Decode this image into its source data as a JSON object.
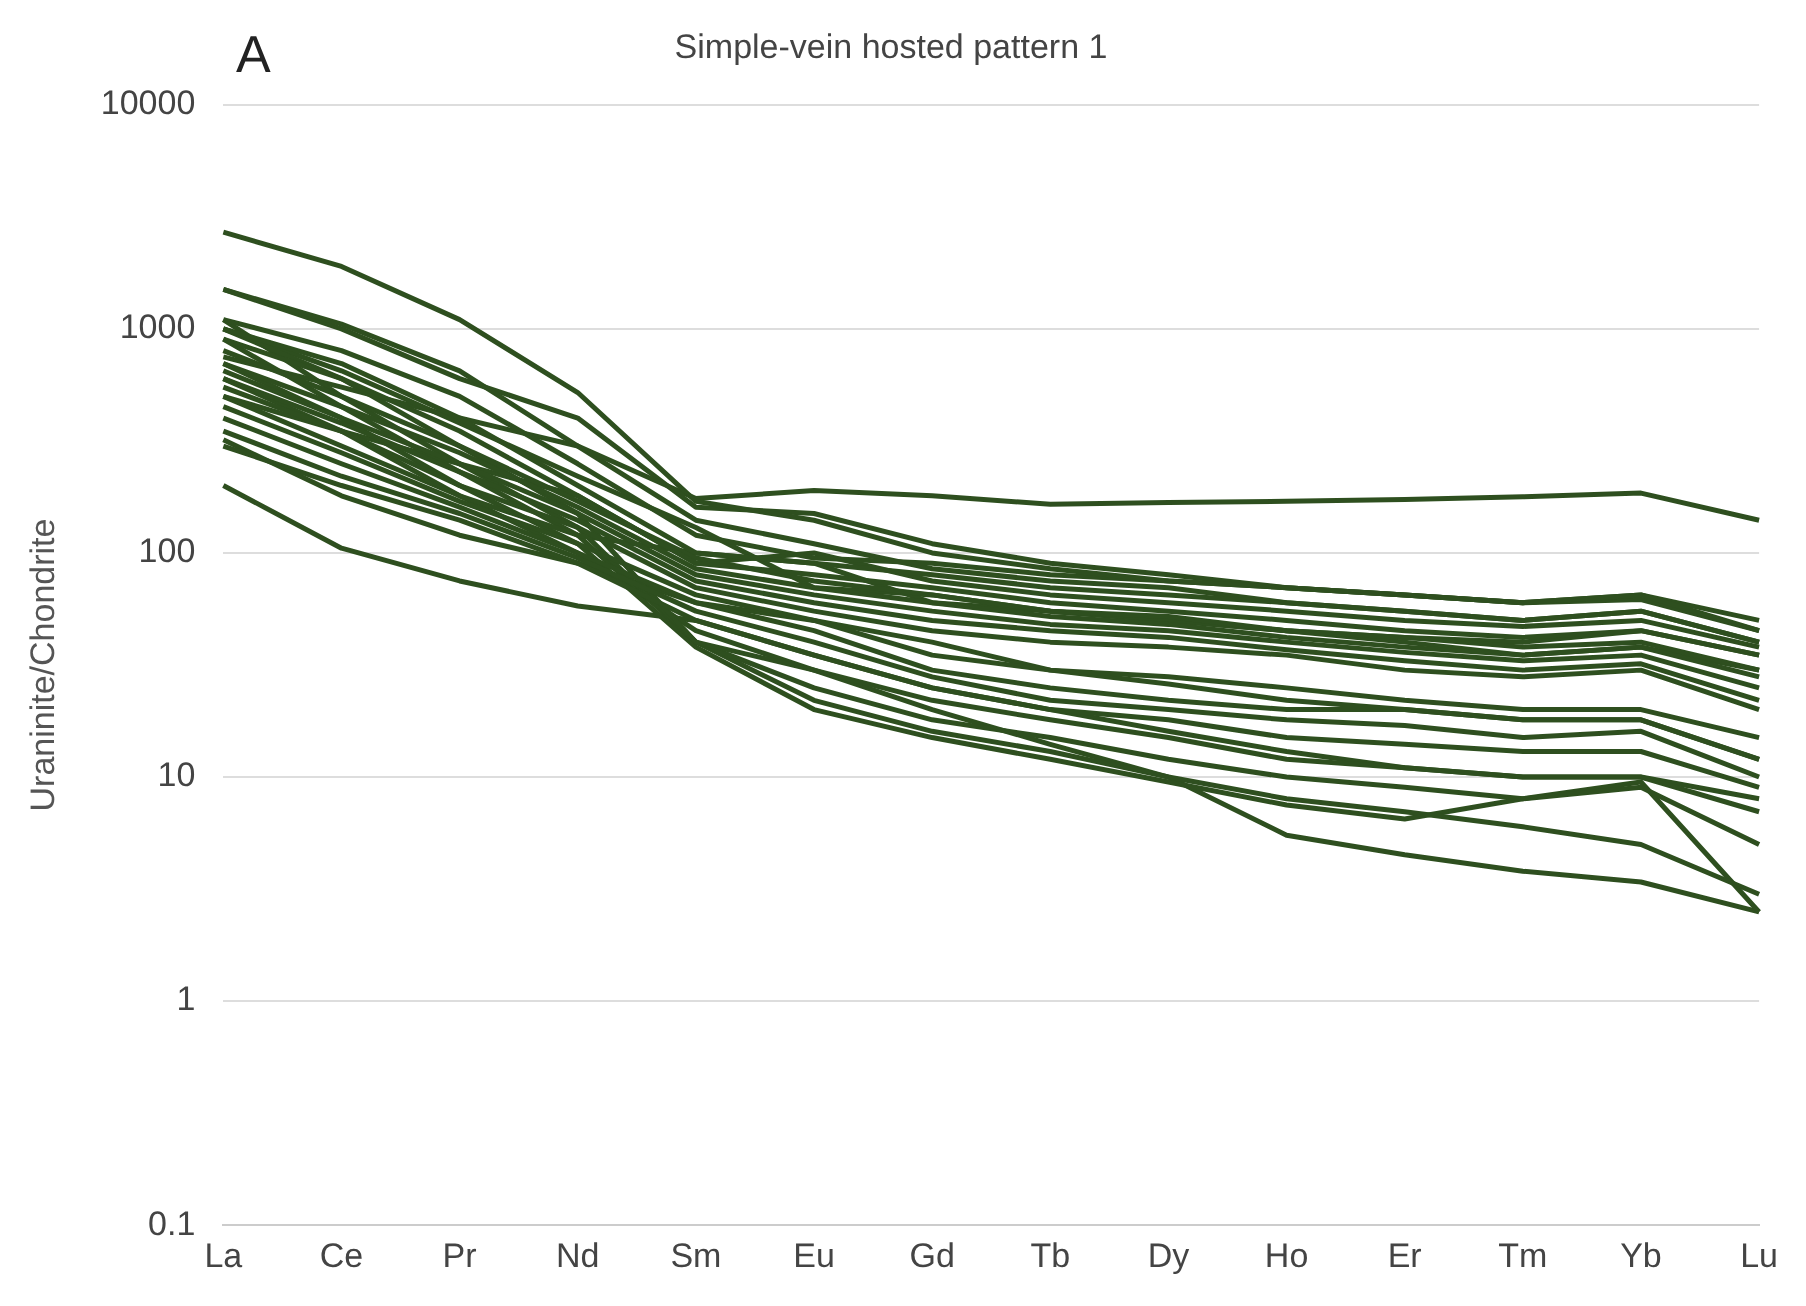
{
  "chart_data": {
    "type": "line",
    "title": "Simple-vein hosted pattern 1",
    "ylabel": "Uraninite/Chondrite",
    "annotations": [
      "A"
    ],
    "log": "y",
    "grid": "y",
    "legend": false,
    "marker": "none",
    "line_style": "solid",
    "ylim": [
      0.1,
      10000
    ],
    "yticks": [
      0.1,
      1,
      10,
      100,
      1000,
      10000
    ],
    "categories": [
      "La",
      "Ce",
      "Pr",
      "Nd",
      "Sm",
      "Eu",
      "Gd",
      "Tb",
      "Dy",
      "Ho",
      "Er",
      "Tm",
      "Yb",
      "Lu"
    ],
    "series": [
      {
        "color": "#2e4f1f",
        "values": [
          2700,
          1900,
          1100,
          520,
          170,
          140,
          100,
          85,
          75,
          70,
          65,
          60,
          65,
          45
        ]
      },
      {
        "color": "#2e4f1f",
        "values": [
          1500,
          1050,
          650,
          300,
          175,
          190,
          180,
          165,
          168,
          170,
          173,
          178,
          185,
          140
        ]
      },
      {
        "color": "#2e4f1f",
        "values": [
          1500,
          1000,
          600,
          400,
          160,
          150,
          110,
          90,
          80,
          70,
          65,
          60,
          65,
          50
        ]
      },
      {
        "color": "#2e4f1f",
        "values": [
          1100,
          800,
          500,
          250,
          120,
          95,
          90,
          80,
          75,
          70,
          65,
          60,
          62,
          45
        ]
      },
      {
        "color": "#2e4f1f",
        "values": [
          1000,
          700,
          400,
          200,
          100,
          90,
          80,
          70,
          65,
          60,
          55,
          50,
          55,
          40
        ]
      },
      {
        "color": "#2e4f1f",
        "values": [
          900,
          600,
          350,
          180,
          90,
          80,
          70,
          60,
          55,
          50,
          45,
          42,
          45,
          35
        ]
      },
      {
        "color": "#2e4f1f",
        "values": [
          800,
          500,
          300,
          170,
          95,
          75,
          65,
          55,
          52,
          45,
          42,
          38,
          40,
          30
        ]
      },
      {
        "color": "#2e4f1f",
        "values": [
          700,
          450,
          280,
          160,
          85,
          70,
          60,
          52,
          48,
          42,
          38,
          35,
          38,
          28
        ]
      },
      {
        "color": "#2e4f1f",
        "values": [
          650,
          400,
          250,
          150,
          80,
          65,
          55,
          48,
          45,
          40,
          36,
          33,
          35,
          25
        ]
      },
      {
        "color": "#2e4f1f",
        "values": [
          600,
          380,
          230,
          140,
          75,
          60,
          50,
          45,
          42,
          37,
          33,
          30,
          32,
          22
        ]
      },
      {
        "color": "#2e4f1f",
        "values": [
          550,
          350,
          200,
          130,
          70,
          55,
          45,
          40,
          38,
          35,
          30,
          28,
          30,
          20
        ]
      },
      {
        "color": "#2e4f1f",
        "values": [
          500,
          300,
          180,
          120,
          100,
          90,
          60,
          55,
          50,
          45,
          40,
          35,
          38,
          30
        ]
      },
      {
        "color": "#2e4f1f",
        "values": [
          450,
          280,
          170,
          110,
          65,
          50,
          35,
          30,
          28,
          25,
          22,
          20,
          20,
          15
        ]
      },
      {
        "color": "#2e4f1f",
        "values": [
          400,
          250,
          160,
          100,
          60,
          45,
          30,
          25,
          22,
          20,
          20,
          18,
          18,
          12
        ]
      },
      {
        "color": "#2e4f1f",
        "values": [
          350,
          220,
          150,
          95,
          55,
          40,
          28,
          22,
          20,
          18,
          17,
          15,
          16,
          10
        ]
      },
      {
        "color": "#2e4f1f",
        "values": [
          300,
          200,
          140,
          90,
          50,
          35,
          25,
          20,
          18,
          15,
          14,
          13,
          13,
          9
        ]
      },
      {
        "color": "#2e4f1f",
        "values": [
          1000,
          600,
          300,
          150,
          40,
          30,
          22,
          18,
          15,
          12,
          11,
          10,
          10,
          7
        ]
      },
      {
        "color": "#2e4f1f",
        "values": [
          1100,
          500,
          250,
          130,
          40,
          25,
          18,
          15,
          12,
          10,
          9,
          8,
          9,
          5
        ]
      },
      {
        "color": "#2e4f1f",
        "values": [
          900,
          450,
          230,
          120,
          40,
          22,
          16,
          13,
          10,
          8,
          7,
          6,
          5,
          3
        ]
      },
      {
        "color": "#2e4f1f",
        "values": [
          700,
          400,
          200,
          110,
          38,
          20,
          15,
          12,
          9.5,
          7.5,
          6.5,
          8,
          9.5,
          2.5
        ]
      },
      {
        "color": "#2e4f1f",
        "values": [
          600,
          350,
          180,
          100,
          45,
          30,
          20,
          14,
          10,
          5.5,
          4.5,
          3.8,
          3.4,
          2.5
        ]
      },
      {
        "color": "#2e4f1f",
        "values": [
          200,
          105,
          75,
          58,
          50,
          35,
          25,
          20,
          16,
          13,
          11,
          10,
          10,
          8
        ]
      },
      {
        "color": "#2e4f1f",
        "values": [
          320,
          180,
          120,
          90,
          60,
          50,
          40,
          30,
          26,
          22,
          20,
          18,
          18,
          12
        ]
      },
      {
        "color": "#2e4f1f",
        "values": [
          1000,
          650,
          380,
          220,
          130,
          70,
          65,
          55,
          50,
          45,
          42,
          40,
          45,
          35
        ]
      },
      {
        "color": "#2e4f1f",
        "values": [
          750,
          550,
          400,
          300,
          140,
          110,
          85,
          75,
          70,
          60,
          55,
          50,
          55,
          40
        ]
      },
      {
        "color": "#2e4f1f",
        "values": [
          500,
          350,
          250,
          180,
          90,
          100,
          75,
          65,
          60,
          55,
          50,
          47,
          50,
          38
        ]
      }
    ]
  }
}
